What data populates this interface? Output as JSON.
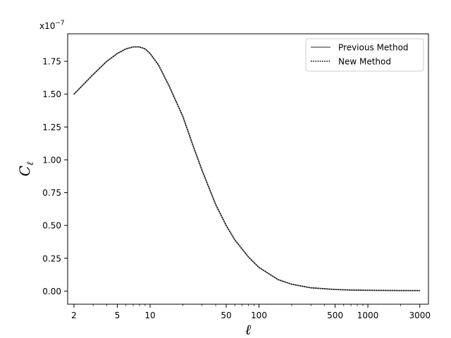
{
  "chart_data": {
    "type": "line",
    "xscale": "log",
    "xlim": [
      1.75,
      3600
    ],
    "ylim": [
      -0.1,
      1.96
    ],
    "ylim_units": "x1e-7",
    "xlabel": "ℓ",
    "ylabel": "C",
    "ylabel_sub": "ℓ",
    "y_offset_text": "x10",
    "y_offset_exp": "−7",
    "xticks": [
      2,
      5,
      10,
      50,
      100,
      500,
      1000,
      3000
    ],
    "xtick_labels": [
      "2",
      "5",
      "10",
      "50",
      "100",
      "500",
      "1000",
      "3000"
    ],
    "yticks": [
      0.0,
      0.25,
      0.5,
      0.75,
      1.0,
      1.25,
      1.5,
      1.75
    ],
    "ytick_labels": [
      "0.00",
      "0.25",
      "0.50",
      "0.75",
      "1.00",
      "1.25",
      "1.50",
      "1.75"
    ],
    "grid": false,
    "legend_position": "top-right",
    "x": [
      2,
      3,
      4,
      5,
      6,
      7,
      8,
      9,
      10,
      12,
      15,
      20,
      25,
      30,
      40,
      50,
      60,
      80,
      100,
      150,
      200,
      300,
      500,
      700,
      1000,
      2000,
      3000
    ],
    "series": [
      {
        "name": "Previous Method",
        "style": "solid",
        "color": "#808080",
        "values": [
          1.5,
          1.65,
          1.75,
          1.81,
          1.845,
          1.86,
          1.86,
          1.845,
          1.81,
          1.72,
          1.56,
          1.33,
          1.1,
          0.92,
          0.66,
          0.5,
          0.39,
          0.26,
          0.18,
          0.087,
          0.052,
          0.025,
          0.012,
          0.008,
          0.006,
          0.004,
          0.004
        ]
      },
      {
        "name": "New Method",
        "style": "dotted",
        "color": "#000000",
        "values": [
          1.5,
          1.65,
          1.75,
          1.81,
          1.845,
          1.86,
          1.86,
          1.845,
          1.81,
          1.72,
          1.56,
          1.33,
          1.1,
          0.92,
          0.66,
          0.5,
          0.39,
          0.26,
          0.18,
          0.087,
          0.052,
          0.025,
          0.012,
          0.008,
          0.006,
          0.004,
          0.004
        ]
      }
    ]
  }
}
